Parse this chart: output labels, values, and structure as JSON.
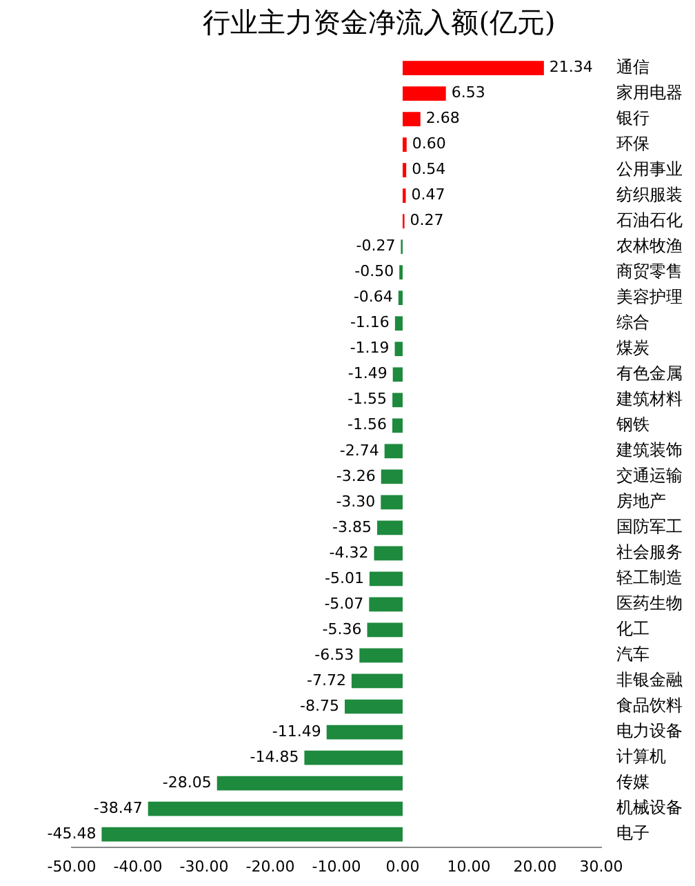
{
  "chart_data": {
    "type": "bar",
    "orientation": "horizontal",
    "title": "行业主力资金净流入额(亿元)",
    "categories": [
      "通信",
      "家用电器",
      "银行",
      "环保",
      "公用事业",
      "纺织服装",
      "石油石化",
      "农林牧渔",
      "商贸零售",
      "美容护理",
      "综合",
      "煤炭",
      "有色金属",
      "建筑材料",
      "钢铁",
      "建筑装饰",
      "交通运输",
      "房地产",
      "国防军工",
      "社会服务",
      "轻工制造",
      "医药生物",
      "化工",
      "汽车",
      "非银金融",
      "食品饮料",
      "电力设备",
      "计算机",
      "传媒",
      "机械设备",
      "电子"
    ],
    "values": [
      21.34,
      6.53,
      2.68,
      0.6,
      0.54,
      0.47,
      0.27,
      -0.27,
      -0.5,
      -0.64,
      -1.16,
      -1.19,
      -1.49,
      -1.55,
      -1.56,
      -2.74,
      -3.26,
      -3.3,
      -3.85,
      -4.32,
      -5.01,
      -5.07,
      -5.36,
      -6.53,
      -7.72,
      -8.75,
      -11.49,
      -14.85,
      -28.05,
      -38.47,
      -45.48
    ],
    "value_labels": [
      "21.34",
      "6.53",
      "2.68",
      "0.60",
      "0.54",
      "0.47",
      "0.27",
      "-0.27",
      "-0.50",
      "-0.64",
      "-1.16",
      "-1.19",
      "-1.49",
      "-1.55",
      "-1.56",
      "-2.74",
      "-3.26",
      "-3.30",
      "-3.85",
      "-4.32",
      "-5.01",
      "-5.07",
      "-5.36",
      "-6.53",
      "-7.72",
      "-8.75",
      "-11.49",
      "-14.85",
      "-28.05",
      "-38.47",
      "-45.48"
    ],
    "colors": [
      "#ff0000",
      "#ff0000",
      "#ff0000",
      "#ff0000",
      "#ff0000",
      "#ff0000",
      "#ff0000",
      "#1e8a3e",
      "#1e8a3e",
      "#1e8a3e",
      "#1e8a3e",
      "#1e8a3e",
      "#1e8a3e",
      "#1e8a3e",
      "#1e8a3e",
      "#1e8a3e",
      "#1e8a3e",
      "#1e8a3e",
      "#1e8a3e",
      "#1e8a3e",
      "#1e8a3e",
      "#1e8a3e",
      "#1e8a3e",
      "#1e8a3e",
      "#1e8a3e",
      "#1e8a3e",
      "#1e8a3e",
      "#1e8a3e",
      "#1e8a3e",
      "#1e8a3e",
      "#1e8a3e"
    ],
    "xlim": [
      -50,
      30
    ],
    "xticks": [
      {
        "value": -50,
        "label": "-50.00"
      },
      {
        "value": -40,
        "label": "-40.00"
      },
      {
        "value": -30,
        "label": "-30.00"
      },
      {
        "value": -20,
        "label": "-20.00"
      },
      {
        "value": -10,
        "label": "-10.00"
      },
      {
        "value": 0,
        "label": "0.00"
      },
      {
        "value": 10,
        "label": "10.00"
      },
      {
        "value": 20,
        "label": "20.00"
      },
      {
        "value": 30,
        "label": "30.00"
      }
    ],
    "grid": false,
    "legend": false
  }
}
